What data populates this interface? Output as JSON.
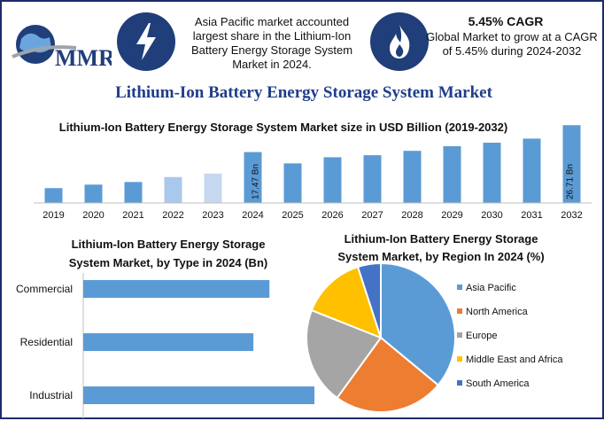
{
  "header": {
    "info1_text": "Asia Pacific market accounted largest share in the Lithium-Ion Battery Energy Storage System Market in 2024.",
    "info2_title": "5.45% CAGR",
    "info2_text": "Global Market to grow at a CAGR of 5.45% during 2024-2032",
    "logo_text": "MMR",
    "icon1": "lightning-icon",
    "icon2": "flame-icon"
  },
  "main_title": "Lithium-Ion Battery Energy Storage System Market",
  "colors": {
    "accent": "#5b9bd5",
    "light_bar_1": "#a9c8ec",
    "light_bar_2": "#c5d8f0",
    "dark_navy": "#1f3e7a",
    "title_blue": "#1f3e8a"
  },
  "chart_data": [
    {
      "type": "bar",
      "title": "Lithium-Ion Battery Energy Storage System Market size in USD Billion (2019-2032)",
      "categories": [
        "2019",
        "2020",
        "2021",
        "2022",
        "2023",
        "2024",
        "2025",
        "2026",
        "2027",
        "2028",
        "2029",
        "2030",
        "2031",
        "2032"
      ],
      "values": [
        5.1,
        6.3,
        7.2,
        8.9,
        10.1,
        17.47,
        13.6,
        15.7,
        16.4,
        17.9,
        19.5,
        20.7,
        22.1,
        26.71
      ],
      "data_labels": {
        "2024": "17.47 Bn",
        "2032": "26.71 Bn"
      },
      "highlight_light": [
        "2022",
        "2023"
      ],
      "ylim": [
        0,
        28
      ],
      "grid": false
    },
    {
      "type": "bar",
      "orientation": "horizontal",
      "title": "Lithium-Ion Battery Energy Storage System Market, by Type in 2024 (Bn)",
      "categories": [
        "Commercial",
        "Residential",
        "Industrial"
      ],
      "values": [
        5.8,
        5.3,
        7.2
      ],
      "xlim": [
        0,
        8
      ]
    },
    {
      "type": "pie",
      "title": "Lithium-Ion Battery Energy Storage System Market, by Region In 2024 (%)",
      "labels": [
        "Asia Pacific",
        "North America",
        "Europe",
        "Middle East and Africa",
        "South America"
      ],
      "values": [
        36,
        24,
        21,
        14,
        5
      ],
      "colors": [
        "#5b9bd5",
        "#ed7d31",
        "#a5a5a5",
        "#ffc000",
        "#4472c4"
      ],
      "legend": "right"
    }
  ]
}
